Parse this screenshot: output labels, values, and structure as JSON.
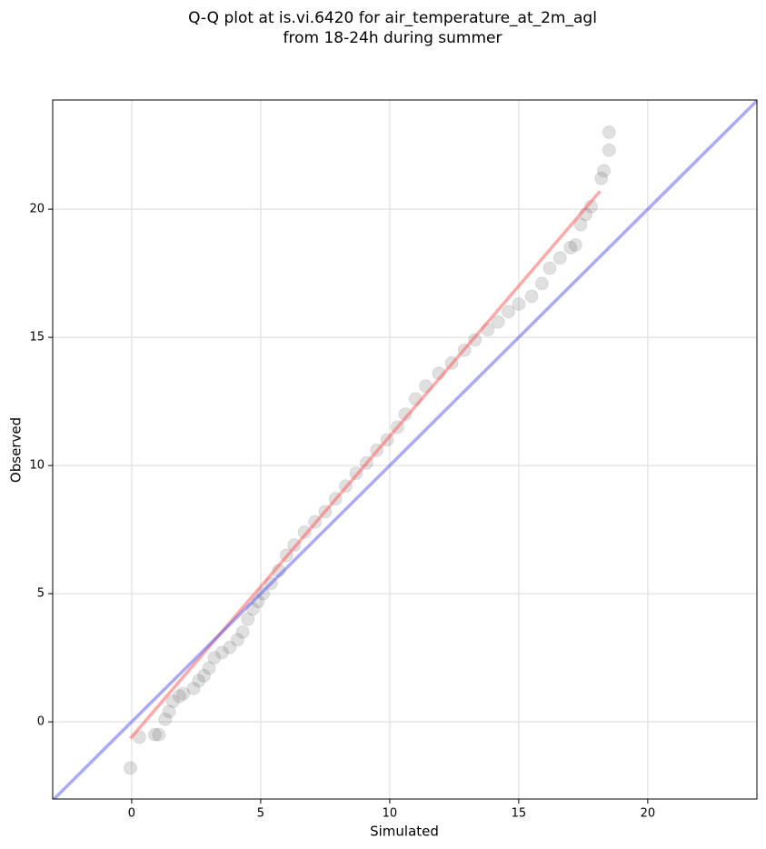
{
  "chart_data": {
    "type": "scatter",
    "title": [
      "Q-Q plot at is.vi.6420 for air_temperature_at_2m_agl",
      "from 18-24h during summer"
    ],
    "xlabel": "Simulated",
    "ylabel": "Observed",
    "xlim": [
      -3.06,
      24.23
    ],
    "ylim": [
      -3.01,
      24.26
    ],
    "xticks": [
      0,
      5,
      10,
      15,
      20
    ],
    "yticks": [
      0,
      5,
      10,
      15,
      20
    ],
    "grid": true,
    "color": "#555555",
    "x": [
      -0.05,
      0.3,
      0.9,
      1.05,
      1.3,
      1.45,
      1.6,
      1.85,
      2.0,
      2.4,
      2.6,
      2.8,
      3.0,
      3.2,
      3.5,
      3.8,
      4.1,
      4.3,
      4.5,
      4.7,
      4.9,
      5.1,
      5.4,
      5.7,
      6.0,
      6.3,
      6.7,
      7.1,
      7.5,
      7.9,
      8.3,
      8.7,
      9.1,
      9.5,
      9.9,
      10.3,
      10.6,
      11.0,
      11.4,
      11.9,
      12.4,
      12.9,
      13.3,
      13.8,
      14.2,
      14.6,
      15.0,
      15.5,
      15.9,
      16.2,
      16.6,
      17.0,
      17.2,
      17.4,
      17.6,
      17.8,
      18.2,
      18.3,
      18.5,
      18.5
    ],
    "values": [
      -1.8,
      -0.6,
      -0.5,
      -0.5,
      0.1,
      0.4,
      0.8,
      1.0,
      1.1,
      1.3,
      1.6,
      1.8,
      2.1,
      2.5,
      2.7,
      2.9,
      3.2,
      3.5,
      4.0,
      4.4,
      4.7,
      5.0,
      5.4,
      5.9,
      6.5,
      6.9,
      7.4,
      7.8,
      8.2,
      8.7,
      9.2,
      9.7,
      10.1,
      10.6,
      11.0,
      11.5,
      12.0,
      12.6,
      13.1,
      13.6,
      14.0,
      14.5,
      14.9,
      15.3,
      15.6,
      16.0,
      16.3,
      16.6,
      17.1,
      17.7,
      18.1,
      18.5,
      18.6,
      19.4,
      19.8,
      20.1,
      21.2,
      21.5,
      22.3,
      23.0
    ],
    "lines": [
      {
        "color": "#ff5555",
        "x": [
          -0.05,
          18.15
        ],
        "values": [
          -0.65,
          20.7
        ]
      },
      {
        "color": "#5555ee",
        "x": [
          -3.06,
          24.23
        ],
        "values": [
          -3.06,
          24.23
        ]
      }
    ]
  }
}
